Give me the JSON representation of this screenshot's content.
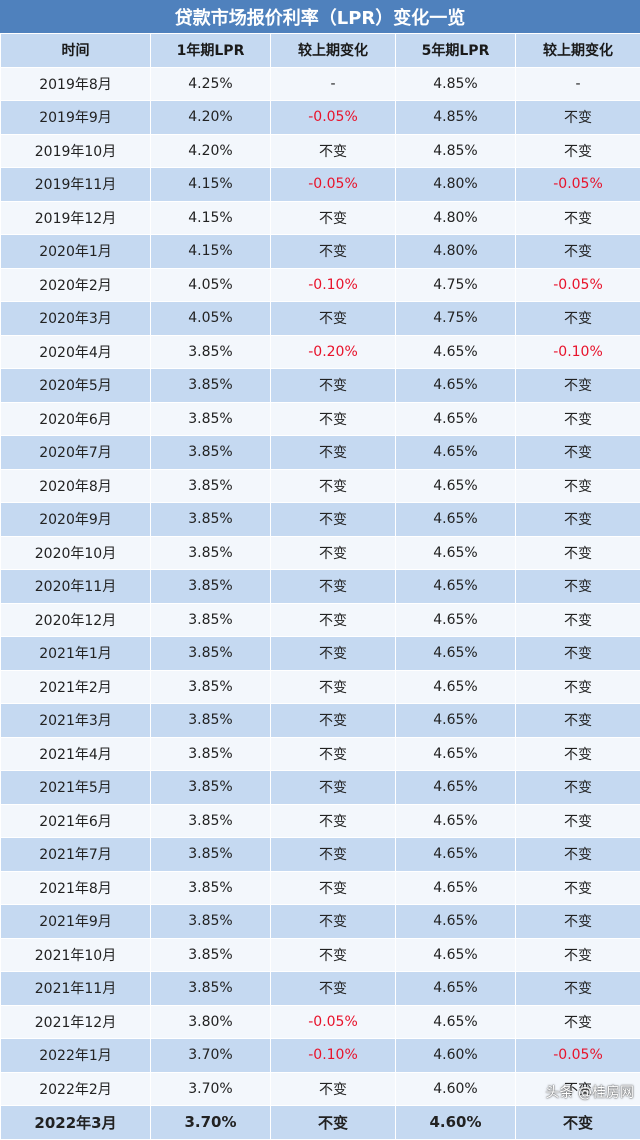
{
  "title": "贷款市场报价利率（LPR）变化一览",
  "headers": [
    "时间",
    "1年期LPR",
    "较上期变化",
    "5年期LPR",
    "较上期变化"
  ],
  "rows": [
    [
      "2019年8月",
      "4.25%",
      "-",
      "4.85%",
      "-"
    ],
    [
      "2019年9月",
      "4.20%",
      "-0.05%",
      "4.85%",
      "不变"
    ],
    [
      "2019年10月",
      "4.20%",
      "不变",
      "4.85%",
      "不变"
    ],
    [
      "2019年11月",
      "4.15%",
      "-0.05%",
      "4.80%",
      "-0.05%"
    ],
    [
      "2019年12月",
      "4.15%",
      "不变",
      "4.80%",
      "不变"
    ],
    [
      "2020年1月",
      "4.15%",
      "不变",
      "4.80%",
      "不变"
    ],
    [
      "2020年2月",
      "4.05%",
      "-0.10%",
      "4.75%",
      "-0.05%"
    ],
    [
      "2020年3月",
      "4.05%",
      "不变",
      "4.75%",
      "不变"
    ],
    [
      "2020年4月",
      "3.85%",
      "-0.20%",
      "4.65%",
      "-0.10%"
    ],
    [
      "2020年5月",
      "3.85%",
      "不变",
      "4.65%",
      "不变"
    ],
    [
      "2020年6月",
      "3.85%",
      "不变",
      "4.65%",
      "不变"
    ],
    [
      "2020年7月",
      "3.85%",
      "不变",
      "4.65%",
      "不变"
    ],
    [
      "2020年8月",
      "3.85%",
      "不变",
      "4.65%",
      "不变"
    ],
    [
      "2020年9月",
      "3.85%",
      "不变",
      "4.65%",
      "不变"
    ],
    [
      "2020年10月",
      "3.85%",
      "不变",
      "4.65%",
      "不变"
    ],
    [
      "2020年11月",
      "3.85%",
      "不变",
      "4.65%",
      "不变"
    ],
    [
      "2020年12月",
      "3.85%",
      "不变",
      "4.65%",
      "不变"
    ],
    [
      "2021年1月",
      "3.85%",
      "不变",
      "4.65%",
      "不变"
    ],
    [
      "2021年2月",
      "3.85%",
      "不变",
      "4.65%",
      "不变"
    ],
    [
      "2021年3月",
      "3.85%",
      "不变",
      "4.65%",
      "不变"
    ],
    [
      "2021年4月",
      "3.85%",
      "不变",
      "4.65%",
      "不变"
    ],
    [
      "2021年5月",
      "3.85%",
      "不变",
      "4.65%",
      "不变"
    ],
    [
      "2021年6月",
      "3.85%",
      "不变",
      "4.65%",
      "不变"
    ],
    [
      "2021年7月",
      "3.85%",
      "不变",
      "4.65%",
      "不变"
    ],
    [
      "2021年8月",
      "3.85%",
      "不变",
      "4.65%",
      "不变"
    ],
    [
      "2021年9月",
      "3.85%",
      "不变",
      "4.65%",
      "不变"
    ],
    [
      "2021年10月",
      "3.85%",
      "不变",
      "4.65%",
      "不变"
    ],
    [
      "2021年11月",
      "3.85%",
      "不变",
      "4.65%",
      "不变"
    ],
    [
      "2021年12月",
      "3.80%",
      "-0.05%",
      "4.65%",
      "不变"
    ],
    [
      "2022年1月",
      "3.70%",
      "-0.10%",
      "4.60%",
      "-0.05%"
    ],
    [
      "2022年2月",
      "3.70%",
      "不变",
      "4.60%",
      "不变"
    ],
    [
      "2022年3月",
      "3.70%",
      "不变",
      "4.60%",
      "不变"
    ]
  ],
  "watermark": "头条 @桂房网",
  "colors": {
    "header_bg": "#4f81bd",
    "row_light": "#f3f7fc",
    "row_dark": "#c5d9f1",
    "negative": "#e8132b"
  }
}
